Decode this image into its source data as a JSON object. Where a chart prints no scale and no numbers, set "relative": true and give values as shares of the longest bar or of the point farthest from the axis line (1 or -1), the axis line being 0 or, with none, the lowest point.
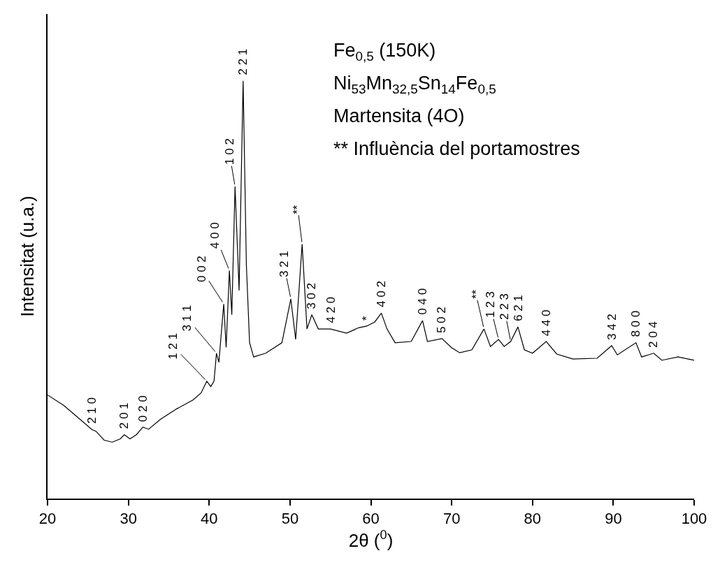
{
  "chart_data": {
    "type": "line",
    "relative": true,
    "xlabel": "2θ ($^{0}$)",
    "ylabel": "Intensitat (u.a.)",
    "xlim": [
      20,
      100
    ],
    "xticks": [
      20,
      30,
      40,
      50,
      60,
      70,
      80,
      90,
      100
    ],
    "grid": false,
    "marker": "none",
    "line_style": "solid",
    "series": [
      {
        "color": "#000000",
        "x": [
          20,
          22,
          24,
          25.5,
          26,
          27,
          28,
          29,
          29.5,
          30.2,
          31,
          31.8,
          32.5,
          34,
          36,
          38,
          39,
          39.7,
          40.2,
          40.6,
          40.9,
          41.2,
          41.8,
          42.1,
          42.5,
          42.8,
          43.2,
          43.7,
          44.2,
          44.6,
          45,
          45.5,
          47,
          49,
          50.1,
          50.7,
          51.5,
          52.1,
          52.7,
          53.5,
          55,
          57,
          58.5,
          59.5,
          60.5,
          61.3,
          62,
          63,
          65,
          66.4,
          67,
          68.8,
          70,
          71,
          72.5,
          74,
          74.8,
          75.8,
          76.5,
          77.3,
          78.2,
          79,
          80,
          81.7,
          83,
          85,
          88,
          89.8,
          90.5,
          92.8,
          93.5,
          95,
          96,
          98,
          100
        ],
        "values": [
          0.248,
          0.223,
          0.19,
          0.165,
          0.161,
          0.14,
          0.135,
          0.143,
          0.153,
          0.143,
          0.153,
          0.171,
          0.166,
          0.19,
          0.215,
          0.236,
          0.253,
          0.281,
          0.268,
          0.281,
          0.348,
          0.326,
          0.466,
          0.362,
          0.546,
          0.44,
          0.747,
          0.498,
          1,
          0.56,
          0.373,
          0.339,
          0.348,
          0.373,
          0.478,
          0.381,
          0.609,
          0.406,
          0.44,
          0.406,
          0.406,
          0.396,
          0.409,
          0.413,
          0.423,
          0.444,
          0.406,
          0.373,
          0.376,
          0.426,
          0.376,
          0.383,
          0.361,
          0.349,
          0.356,
          0.406,
          0.364,
          0.381,
          0.364,
          0.376,
          0.411,
          0.356,
          0.348,
          0.376,
          0.346,
          0.334,
          0.336,
          0.366,
          0.344,
          0.373,
          0.339,
          0.348,
          0.331,
          0.339,
          0.331
        ]
      }
    ],
    "annotations": [
      "Fe$_{0,5}$ (150K)",
      "Ni$_{53}$Mn$_{32,5}$Sn$_{14}$Fe$_{0,5}$",
      "Martensita (4O)",
      "** Influència del portamostres",
      {
        "text": "2 1 0",
        "x": 25.5,
        "y": 0.165
      },
      {
        "text": "2 0 1",
        "x": 29.5,
        "y": 0.153
      },
      {
        "text": "0 2 0",
        "x": 31.8,
        "y": 0.171
      },
      {
        "text": "1 2 1",
        "x": 39.7,
        "y": 0.281
      },
      {
        "text": "3 1 1",
        "x": 40.9,
        "y": 0.348
      },
      {
        "text": "0 0 2",
        "x": 41.8,
        "y": 0.466
      },
      {
        "text": "4 0 0",
        "x": 42.5,
        "y": 0.546
      },
      {
        "text": "1 0 2",
        "x": 43.2,
        "y": 0.747
      },
      {
        "text": "2 2 1",
        "x": 44.2,
        "y": 1
      },
      {
        "text": "3 2 1",
        "x": 50.1,
        "y": 0.478
      },
      {
        "text": "**",
        "x": 51.5,
        "y": 0.609
      },
      {
        "text": "3 0 2",
        "x": 52.7,
        "y": 0.44
      },
      {
        "text": "4 2 0",
        "x": 55,
        "y": 0.406
      },
      {
        "text": "*",
        "x": 59.5,
        "y": 0.413
      },
      {
        "text": "4 0 2",
        "x": 61.3,
        "y": 0.444
      },
      {
        "text": "0 4 0",
        "x": 66.4,
        "y": 0.426
      },
      {
        "text": "5 0 2",
        "x": 68.8,
        "y": 0.383
      },
      {
        "text": "**",
        "x": 74,
        "y": 0.406
      },
      {
        "text": "1 2 3",
        "x": 75.8,
        "y": 0.381
      },
      {
        "text": "2 2 3",
        "x": 77.3,
        "y": 0.376
      },
      {
        "text": "6 2 1",
        "x": 78.2,
        "y": 0.411
      },
      {
        "text": "4 4 0",
        "x": 81.7,
        "y": 0.376
      },
      {
        "text": "3 4 2",
        "x": 89.8,
        "y": 0.366
      },
      {
        "text": "8 0 0",
        "x": 92.8,
        "y": 0.373
      },
      {
        "text": "2 0 4",
        "x": 95,
        "y": 0.348
      }
    ]
  }
}
